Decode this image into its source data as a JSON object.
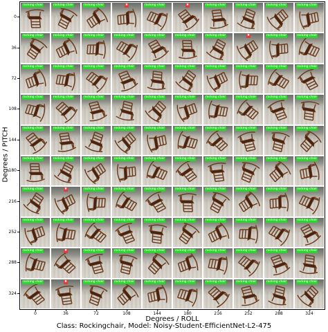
{
  "chart_data": {
    "type": "image-grid",
    "title": "Class: Rockingchair, Model: Noisy-Student-EfficientNet-L2-475",
    "xlabel": "Degrees / ROLL",
    "ylabel": "Degrees / PITCH",
    "x": [
      "0",
      "36",
      "72",
      "108",
      "144",
      "180",
      "216",
      "252",
      "288",
      "324"
    ],
    "y": [
      "0",
      "36",
      "72",
      "108",
      "144",
      "180",
      "216",
      "252",
      "288",
      "324"
    ],
    "predicted_label_correct": "rocking chair",
    "cells": [
      [
        "correct",
        "correct",
        "correct",
        "wrong",
        "correct",
        "wrong",
        "correct",
        "correct",
        "correct",
        "correct"
      ],
      [
        "correct",
        "correct",
        "correct",
        "correct",
        "correct",
        "correct",
        "correct",
        "wrong",
        "correct",
        "correct"
      ],
      [
        "correct",
        "correct",
        "correct",
        "correct",
        "correct",
        "correct",
        "correct",
        "correct",
        "correct",
        "correct"
      ],
      [
        "correct",
        "correct",
        "correct",
        "correct",
        "correct",
        "correct",
        "correct",
        "correct",
        "correct",
        "correct"
      ],
      [
        "correct",
        "correct",
        "correct",
        "correct",
        "correct",
        "correct",
        "correct",
        "correct",
        "correct",
        "correct"
      ],
      [
        "correct",
        "correct",
        "correct",
        "correct",
        "correct",
        "correct",
        "correct",
        "correct",
        "correct",
        "correct"
      ],
      [
        "correct",
        "wrong",
        "correct",
        "correct",
        "correct",
        "correct",
        "correct",
        "correct",
        "correct",
        "correct"
      ],
      [
        "correct",
        "correct",
        "correct",
        "correct",
        "correct",
        "correct",
        "correct",
        "correct",
        "correct",
        "correct"
      ],
      [
        "correct",
        "wrong",
        "correct",
        "correct",
        "correct",
        "correct",
        "correct",
        "correct",
        "correct",
        "correct"
      ],
      [
        "correct",
        "wrong",
        "correct",
        "correct",
        "correct",
        "correct",
        "correct",
        "correct",
        "correct",
        "correct"
      ]
    ],
    "colors": {
      "correct": "#2bd62b",
      "wrong": "#e23b3b",
      "chair": "#6b3a1c"
    }
  }
}
